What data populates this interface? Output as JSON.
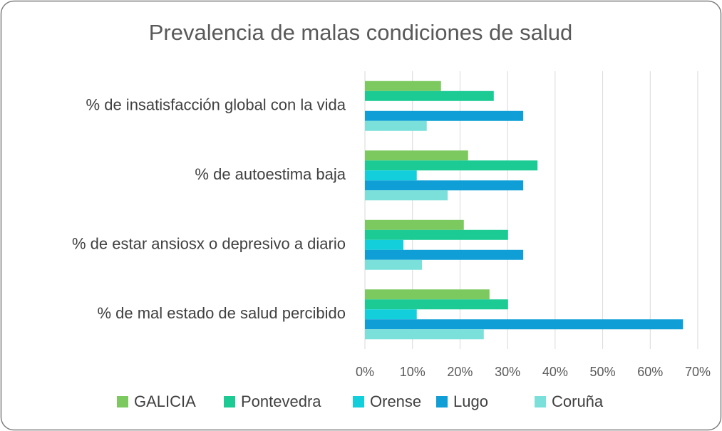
{
  "chart_data": {
    "type": "barh",
    "title": "Prevalencia de malas condiciones de salud",
    "categories": [
      "% de insatisfacción global con la vida",
      "% de autoestima baja",
      "% de estar ansiosx o depresivo a diario",
      "% de mal estado de salud percibido"
    ],
    "series": [
      {
        "name": "GALICIA",
        "color": "#7cc95f",
        "values": [
          16.0,
          21.7,
          20.8,
          26.2
        ]
      },
      {
        "name": "Pontevedra",
        "color": "#1ccb93",
        "values": [
          27.1,
          36.3,
          30.1,
          30.1
        ]
      },
      {
        "name": "Orense",
        "color": "#13cedb",
        "values": [
          0,
          10.9,
          8.1,
          10.9
        ]
      },
      {
        "name": "Lugo",
        "color": "#0f9fd6",
        "values": [
          33.3,
          33.3,
          33.3,
          66.9
        ]
      },
      {
        "name": "Coruña",
        "color": "#7ce0da",
        "values": [
          13.0,
          17.4,
          12.0,
          25.0
        ]
      }
    ],
    "xlim": [
      0,
      70
    ],
    "xticks": [
      {
        "value": 0,
        "label": "0%"
      },
      {
        "value": 10,
        "label": "10%"
      },
      {
        "value": 20,
        "label": "20%"
      },
      {
        "value": 30,
        "label": "30%"
      },
      {
        "value": 40,
        "label": "40%"
      },
      {
        "value": 50,
        "label": "50%"
      },
      {
        "value": 60,
        "label": "60%"
      },
      {
        "value": 70,
        "label": "70%"
      }
    ],
    "grid": true,
    "legend": "bottom"
  }
}
